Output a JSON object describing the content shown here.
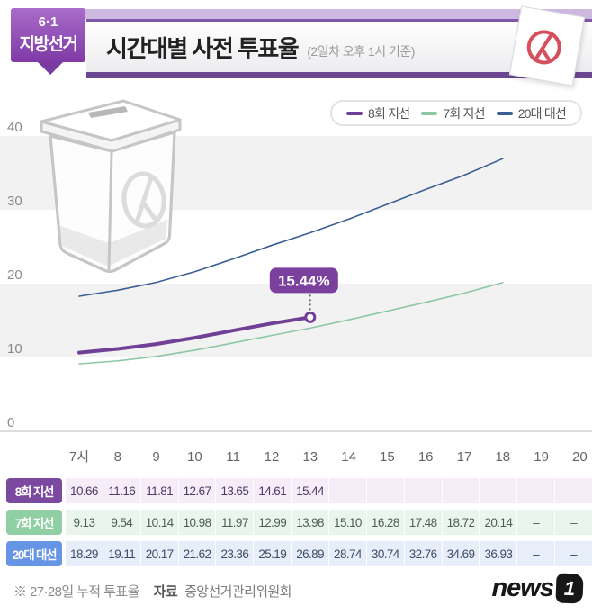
{
  "header": {
    "badge_line1": "6·1",
    "badge_line2": "지방선거",
    "title": "시간대별 사전 투표율",
    "subtitle": "(2일차 오후 1시 기준)"
  },
  "chart_data": {
    "type": "line",
    "title": "시간대별 사전 투표율 (2일차 오후 1시 기준)",
    "categories": [
      "7시",
      "8",
      "9",
      "10",
      "11",
      "12",
      "13",
      "14",
      "15",
      "16",
      "17",
      "18",
      "19",
      "20"
    ],
    "yticks": [
      40,
      30,
      20,
      10,
      0
    ],
    "ylim": [
      0,
      44
    ],
    "grid": "banded",
    "band_color": "#f2f2f2",
    "legend_position": "top-right",
    "series": [
      {
        "name": "8회 지선",
        "color": "#6f4096",
        "width": 4,
        "values": [
          10.66,
          11.16,
          11.81,
          12.67,
          13.65,
          14.61,
          15.44
        ]
      },
      {
        "name": "7회 지선",
        "color": "#8cc7a4",
        "width": 1.6,
        "values": [
          9.13,
          9.54,
          10.14,
          10.98,
          11.97,
          12.99,
          13.98,
          15.1,
          16.28,
          17.48,
          18.72,
          20.14
        ]
      },
      {
        "name": "20대 대선",
        "color": "#3a5f94",
        "width": 1.6,
        "values": [
          18.29,
          19.11,
          20.17,
          21.62,
          23.36,
          25.19,
          26.89,
          28.74,
          30.74,
          32.76,
          34.69,
          36.93
        ]
      }
    ],
    "callout": {
      "series": 0,
      "index": 6,
      "label": "15.44%",
      "color": "#7b3f9d"
    }
  },
  "table": {
    "rows": [
      {
        "label": "8회 지선",
        "badge_color": "#7b4aa0",
        "row_color": "#f7edf9",
        "text_color": "#4d3a66",
        "values": [
          "10.66",
          "11.16",
          "11.81",
          "12.67",
          "13.65",
          "14.61",
          "15.44",
          "",
          "",
          "",
          "",
          "",
          "",
          ""
        ]
      },
      {
        "label": "7회 지선",
        "badge_color": "#90cfa3",
        "row_color": "#eaf5ee",
        "text_color": "#4e6054",
        "values": [
          "9.13",
          "9.54",
          "10.14",
          "10.98",
          "11.97",
          "12.99",
          "13.98",
          "15.10",
          "16.28",
          "17.48",
          "18.72",
          "20.14",
          "–",
          "–"
        ]
      },
      {
        "label": "20대 대선",
        "badge_color": "#6795e5",
        "row_color": "#e8eef9",
        "text_color": "#3d4d66",
        "values": [
          "18.29",
          "19.11",
          "20.17",
          "21.62",
          "23.36",
          "25.19",
          "26.89",
          "28.74",
          "30.74",
          "32.76",
          "34.69",
          "36.93",
          "–",
          "–"
        ]
      }
    ]
  },
  "footer": {
    "note": "※ 27·28일 누적 투표율",
    "source_label": "자료",
    "source": "중앙선거관리위원회",
    "logo_text": "news",
    "logo_badge": "1"
  }
}
